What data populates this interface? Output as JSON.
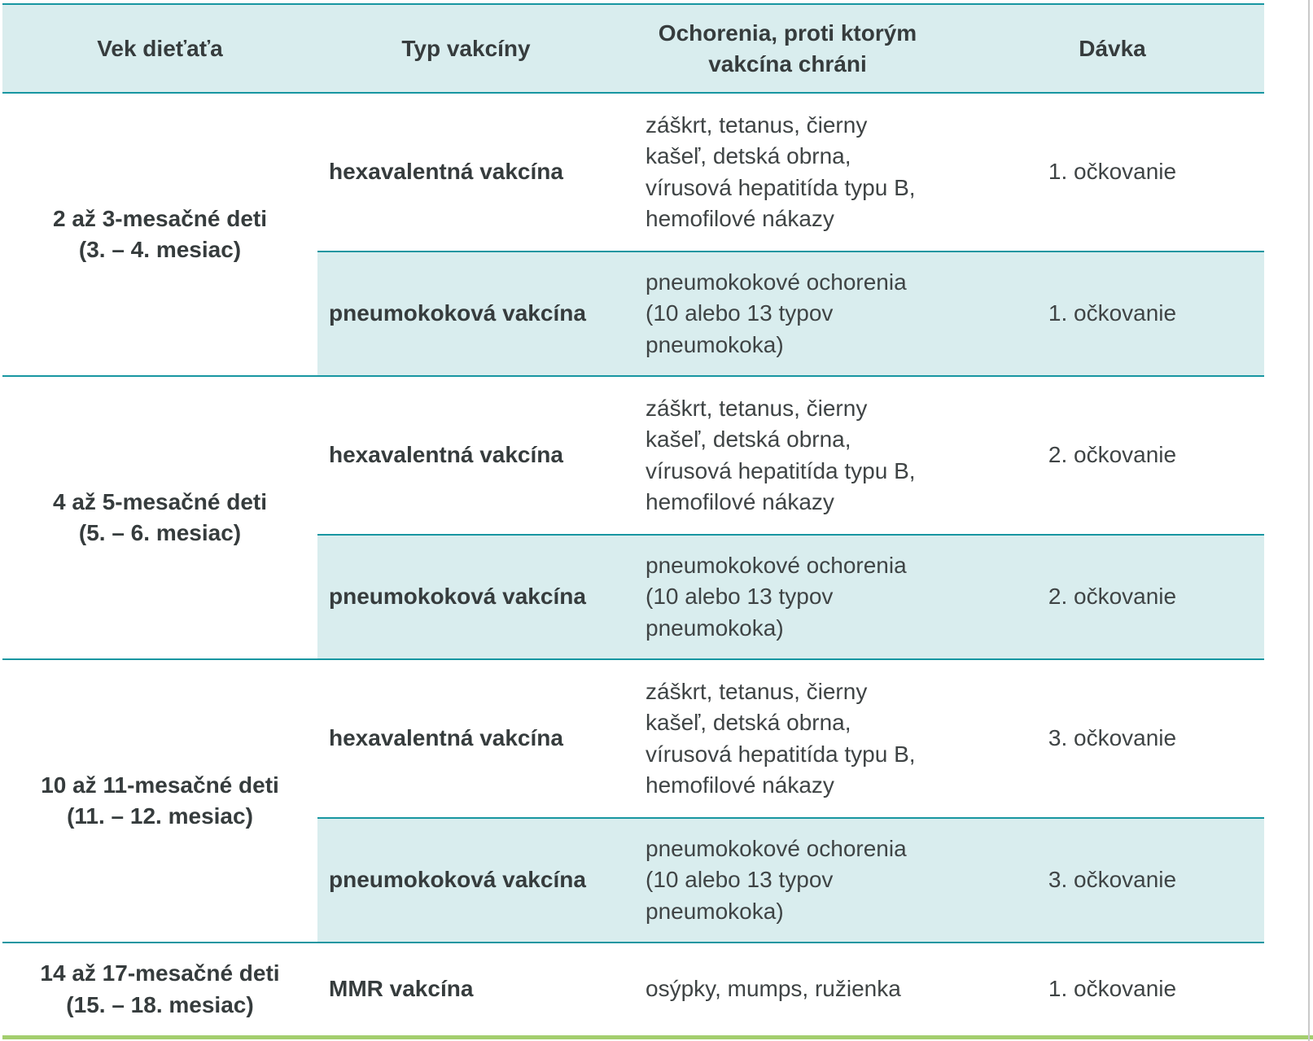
{
  "colors": {
    "accent_teal": "#1796a1",
    "header_bg": "#d9edee",
    "row_highlight_bg": "#d9edee",
    "bottom_green_line": "#a3ce6e",
    "right_gray_line": "#c9c9c9",
    "text": "#3f4445"
  },
  "table": {
    "columns": [
      {
        "label": "Vek dieťaťa"
      },
      {
        "label": "Typ vakcíny"
      },
      {
        "label": [
          "Ochorenia, proti ktorým",
          "vakcína chráni"
        ]
      },
      {
        "label": "Dávka"
      }
    ],
    "groups": [
      {
        "age": [
          "2 až 3-mesačné deti",
          "(3. – 4. mesiac)"
        ],
        "rows": [
          {
            "vaccine": "hexavalentná vakcína",
            "diseases": [
              "záškrt, tetanus, čierny",
              "kašeľ, detská obrna,",
              "vírusová hepatitída typu B,",
              "hemofilové nákazy"
            ],
            "dose": "1. očkovanie",
            "highlighted": false
          },
          {
            "vaccine": "pneumokoková vakcína",
            "diseases": [
              "pneumokokové ochorenia",
              "(10 alebo 13 typov",
              "pneumokoka)"
            ],
            "dose": "1. očkovanie",
            "highlighted": true
          }
        ]
      },
      {
        "age": [
          "4 až 5-mesačné deti",
          "(5. – 6. mesiac)"
        ],
        "rows": [
          {
            "vaccine": "hexavalentná vakcína",
            "diseases": [
              "záškrt, tetanus, čierny",
              "kašeľ, detská obrna,",
              "vírusová hepatitída typu B,",
              "hemofilové nákazy"
            ],
            "dose": "2. očkovanie",
            "highlighted": false
          },
          {
            "vaccine": "pneumokoková vakcína",
            "diseases": [
              "pneumokokové ochorenia",
              "(10 alebo 13 typov",
              "pneumokoka)"
            ],
            "dose": "2. očkovanie",
            "highlighted": true
          }
        ]
      },
      {
        "age": [
          "10 až 11-mesačné deti",
          "(11. – 12. mesiac)"
        ],
        "rows": [
          {
            "vaccine": "hexavalentná vakcína",
            "diseases": [
              "záškrt, tetanus, čierny",
              "kašeľ, detská obrna,",
              "vírusová hepatitída typu B,",
              "hemofilové nákazy"
            ],
            "dose": "3. očkovanie",
            "highlighted": false
          },
          {
            "vaccine": "pneumokoková vakcína",
            "diseases": [
              "pneumokokové ochorenia",
              "(10 alebo 13 typov",
              "pneumokoka)"
            ],
            "dose": "3. očkovanie",
            "highlighted": true
          }
        ]
      },
      {
        "age": [
          "14 až 17-mesačné deti",
          "(15. – 18. mesiac)"
        ],
        "rows": [
          {
            "vaccine": "MMR vakcína",
            "diseases": [
              "osýpky, mumps, ružienka"
            ],
            "dose": "1. očkovanie",
            "highlighted": false
          }
        ]
      }
    ]
  }
}
